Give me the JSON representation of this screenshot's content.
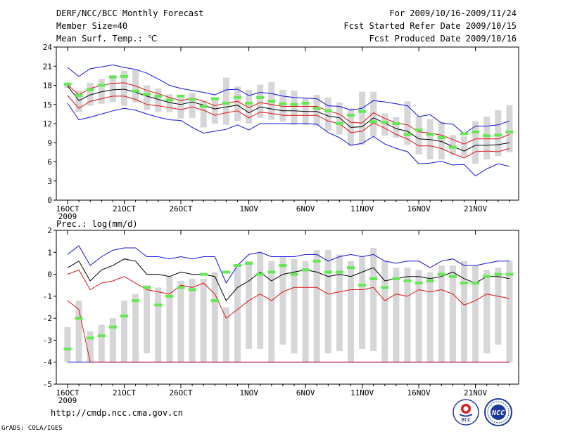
{
  "header": {
    "title": "DERF/NCC/BCC Monthly Forecast",
    "member_size": "Member Size=40",
    "variable": "Mean Surf. Temp.: ℃",
    "period": "For 2009/10/16-2009/11/24",
    "start_date": "Fcst Started Refer Date 2009/10/15",
    "produced_date": "Fcst Produced Date 2009/10/16"
  },
  "footer": {
    "url": "http://cmdp.ncc.cma.gov.cn",
    "credit": "GrADS: COLA/IGES",
    "logo_bcc": "BCC",
    "logo_ncc": "NCC"
  },
  "colors": {
    "box": "#d6d6d8",
    "mean": "#000000",
    "red": "#e01010",
    "blue": "#1010e0",
    "green": "#60ea50",
    "axis": "#000000"
  },
  "chart_data": [
    {
      "type": "box-ensemble",
      "title": "Mean Surf. Temp.: ℃",
      "x_tick_labels": [
        "16OCT",
        "21OCT",
        "26OCT",
        "1NOV",
        "6NOV",
        "11NOV",
        "16NOV",
        "21NOV"
      ],
      "x_tick_day_index": [
        0,
        5,
        10,
        16,
        21,
        26,
        31,
        36
      ],
      "x_year_label": "2009",
      "ylim": [
        0,
        24
      ],
      "y_ticks": [
        0,
        3,
        6,
        9,
        12,
        15,
        18,
        21,
        24
      ],
      "days": 40,
      "mean": [
        17.9,
        15.6,
        16.5,
        17.0,
        17.3,
        17.4,
        16.9,
        16.3,
        15.8,
        15.3,
        15.0,
        15.4,
        14.9,
        14.3,
        14.6,
        14.9,
        13.7,
        14.6,
        14.3,
        14.0,
        14.0,
        13.9,
        13.9,
        13.2,
        12.9,
        11.4,
        11.5,
        12.9,
        12.1,
        11.2,
        10.8,
        9.6,
        9.5,
        9.2,
        8.4,
        7.7,
        8.6,
        8.6,
        8.7,
        9.0
      ],
      "red_upper": [
        18.1,
        16.5,
        17.5,
        18.0,
        18.3,
        18.4,
        17.9,
        17.2,
        16.7,
        16.1,
        15.6,
        16.0,
        15.5,
        14.8,
        15.2,
        15.5,
        14.5,
        15.3,
        15.0,
        14.7,
        14.7,
        14.7,
        14.7,
        14.0,
        13.5,
        12.2,
        12.1,
        13.7,
        12.8,
        12.1,
        11.8,
        10.7,
        10.5,
        10.2,
        9.5,
        8.8,
        9.6,
        9.6,
        9.6,
        10.3
      ],
      "red_lower": [
        16.4,
        14.4,
        15.5,
        15.9,
        16.3,
        16.3,
        15.8,
        15.0,
        14.8,
        14.5,
        14.2,
        14.6,
        14.1,
        13.3,
        13.7,
        14.0,
        12.9,
        13.8,
        13.6,
        13.3,
        13.3,
        13.3,
        13.3,
        12.4,
        12.0,
        10.6,
        10.8,
        12.1,
        11.3,
        10.3,
        9.6,
        8.5,
        8.5,
        8.1,
        7.3,
        6.6,
        7.6,
        7.7,
        7.6,
        8.1
      ],
      "blue_upper": [
        20.8,
        19.4,
        20.6,
        20.9,
        21.2,
        20.8,
        20.5,
        19.9,
        19.0,
        18.0,
        17.5,
        17.2,
        16.9,
        16.5,
        17.3,
        17.4,
        16.4,
        16.9,
        16.7,
        16.3,
        16.1,
        16.0,
        15.9,
        14.8,
        14.7,
        14.1,
        14.4,
        15.6,
        15.4,
        15.1,
        14.8,
        13.1,
        13.4,
        12.1,
        11.9,
        10.4,
        11.6,
        11.6,
        11.8,
        12.4
      ],
      "blue_lower": [
        15.2,
        12.6,
        13.0,
        13.5,
        14.0,
        14.4,
        14.1,
        13.5,
        13.0,
        12.6,
        12.5,
        11.4,
        10.5,
        10.8,
        11.1,
        11.8,
        11.0,
        12.0,
        12.0,
        12.0,
        12.0,
        12.0,
        11.9,
        10.6,
        9.8,
        8.6,
        8.9,
        10.0,
        8.8,
        8.1,
        7.6,
        5.7,
        5.8,
        6.1,
        5.5,
        5.6,
        3.8,
        4.9,
        5.7,
        5.3
      ],
      "box_high": [
        18.4,
        17.2,
        18.4,
        19.0,
        19.6,
        20.3,
        20.5,
        18.0,
        17.5,
        16.6,
        16.0,
        16.8,
        15.6,
        16.0,
        19.2,
        17.8,
        17.3,
        18.1,
        18.5,
        17.3,
        17.2,
        16.0,
        16.5,
        16.1,
        15.3,
        14.4,
        17.0,
        17.0,
        13.6,
        13.0,
        15.5,
        13.1,
        12.7,
        12.3,
        10.2,
        10.0,
        12.4,
        13.1,
        14.1,
        14.9
      ],
      "box_low": [
        17.6,
        13.8,
        14.8,
        15.1,
        15.4,
        14.8,
        15.3,
        14.1,
        13.8,
        13.8,
        12.8,
        12.9,
        11.4,
        12.0,
        11.8,
        12.4,
        12.0,
        12.9,
        12.6,
        12.3,
        11.8,
        11.8,
        11.7,
        10.9,
        10.3,
        8.5,
        8.7,
        10.0,
        10.1,
        9.8,
        8.7,
        7.2,
        6.4,
        6.4,
        7.0,
        6.8,
        5.7,
        6.4,
        6.9,
        7.5
      ],
      "green": [
        18.2,
        16.4,
        17.3,
        18.0,
        19.3,
        19.4,
        17.1,
        16.6,
        16.3,
        15.7,
        16.3,
        15.8,
        14.7,
        15.9,
        15.2,
        16.1,
        15.2,
        16.1,
        15.5,
        15.1,
        15.0,
        15.2,
        14.4,
        14.0,
        12.0,
        13.3,
        13.9,
        12.3,
        12.2,
        12.0,
        10.3,
        11.0,
        10.3,
        9.8,
        8.3,
        10.4,
        10.7,
        10.1,
        10.2,
        10.7
      ]
    },
    {
      "type": "box-ensemble",
      "title": "Prec.: log(mm/d)",
      "x_tick_labels": [
        "16OCT",
        "21OCT",
        "26OCT",
        "1NOV",
        "6NOV",
        "11NOV",
        "16NOV",
        "21NOV"
      ],
      "x_tick_day_index": [
        0,
        5,
        10,
        16,
        21,
        26,
        31,
        36
      ],
      "x_year_label": "2009",
      "ylim": [
        -5,
        2
      ],
      "y_ticks": [
        -5,
        -4,
        -3,
        -2,
        -1,
        0,
        1,
        2
      ],
      "days": 40,
      "mean": [
        0.3,
        0.6,
        -0.3,
        0.2,
        0.4,
        0.7,
        0.6,
        0.0,
        0.0,
        -0.1,
        0.1,
        0.0,
        0.0,
        -0.1,
        -1.2,
        -0.6,
        -0.3,
        0.1,
        -0.3,
        0.0,
        0.1,
        0.2,
        0.1,
        -0.1,
        0.0,
        -0.1,
        0.1,
        0.3,
        -0.3,
        -0.2,
        -0.1,
        -0.1,
        -0.2,
        -0.1,
        0.1,
        -0.2,
        -0.4,
        -0.1,
        -0.1,
        -0.2
      ],
      "red_upper": [
        0.0,
        0.2,
        -0.7,
        -0.4,
        -0.3,
        -0.1,
        -0.4,
        -0.7,
        -0.8,
        -0.9,
        -0.5,
        -0.6,
        -0.4,
        -0.9,
        -2.0,
        -1.6,
        -1.2,
        -0.9,
        -1.2,
        -0.8,
        -0.6,
        -0.6,
        -0.6,
        -0.9,
        -0.8,
        -0.7,
        -0.7,
        -0.6,
        -1.2,
        -0.9,
        -1.0,
        -0.7,
        -0.8,
        -0.7,
        -0.9,
        -1.4,
        -1.2,
        -0.9,
        -1.0,
        -1.1
      ],
      "red_lower": [
        -1.2,
        -1.6,
        -4.0,
        -4.0,
        -4.0,
        -4.0,
        -4.0,
        -4.0,
        -4.0,
        -4.0,
        -4.0,
        -4.0,
        -4.0,
        -4.0,
        -4.0,
        -4.0,
        -4.0,
        -4.0,
        -4.0,
        -4.0,
        -4.0,
        -4.0,
        -4.0,
        -4.0,
        -4.0,
        -4.0,
        -4.0,
        -4.0,
        -4.0,
        -4.0,
        -4.0,
        -4.0,
        -4.0,
        -4.0,
        -4.0,
        -4.0,
        -4.0,
        -4.0,
        -4.0,
        -4.0
      ],
      "blue_upper": [
        0.9,
        1.3,
        0.4,
        0.8,
        1.1,
        1.2,
        1.2,
        0.8,
        0.8,
        0.7,
        0.8,
        0.7,
        0.8,
        0.8,
        -0.4,
        0.4,
        0.9,
        1.0,
        0.8,
        0.8,
        0.8,
        0.9,
        0.9,
        0.6,
        0.8,
        0.9,
        0.8,
        0.9,
        0.6,
        0.5,
        0.6,
        0.6,
        0.3,
        0.6,
        0.7,
        0.4,
        0.4,
        0.5,
        0.6,
        0.6
      ],
      "blue_lower": [
        -4.0,
        -4.0,
        -4.0,
        -4.0,
        -4.0,
        -4.0,
        -4.0,
        -4.0,
        -4.0,
        -4.0,
        -4.0,
        -4.0,
        -4.0,
        -4.0,
        -4.0,
        -4.0,
        -4.0,
        -4.0,
        -4.0,
        -4.0,
        -4.0,
        -4.0,
        -4.0,
        -4.0,
        -4.0,
        -4.0,
        -4.0,
        -4.0,
        -4.0,
        -4.0,
        -4.0,
        -4.0,
        -4.0,
        -4.0,
        -4.0,
        -4.0,
        -4.0,
        -4.0,
        -4.0,
        -4.0
      ],
      "box_high": [
        -2.4,
        -1.2,
        -2.6,
        -2.3,
        -2.0,
        -1.2,
        -0.9,
        -0.5,
        -0.6,
        -0.1,
        -0.3,
        -0.2,
        -0.2,
        0.1,
        -1.5,
        0.3,
        0.6,
        1.0,
        0.6,
        0.8,
        0.7,
        0.6,
        1.1,
        1.1,
        0.9,
        0.6,
        0.8,
        1.2,
        0.6,
        0.3,
        0.3,
        0.2,
        0.1,
        0.4,
        0.4,
        0.6,
        0.4,
        0.2,
        0.3,
        0.6
      ],
      "box_low": [
        -4.0,
        -4.0,
        -4.0,
        -4.0,
        -4.0,
        -4.0,
        -4.0,
        -3.6,
        -4.0,
        -4.0,
        -4.0,
        -4.0,
        -4.0,
        -4.0,
        -4.0,
        -4.0,
        -3.4,
        -3.4,
        -4.0,
        -3.2,
        -3.6,
        -4.0,
        -4.0,
        -3.6,
        -3.5,
        -4.0,
        -3.4,
        -3.5,
        -4.0,
        -4.0,
        -4.0,
        -4.0,
        -4.0,
        -4.0,
        -4.0,
        -4.0,
        -4.0,
        -3.6,
        -3.2,
        -4.0
      ],
      "green": [
        -3.4,
        -2.0,
        -2.9,
        -2.8,
        -2.4,
        -1.9,
        -1.2,
        -0.6,
        -1.4,
        -1.0,
        -0.6,
        -0.7,
        0.0,
        -1.2,
        0.1,
        0.4,
        0.5,
        0.0,
        0.1,
        0.4,
        0.0,
        0.2,
        0.6,
        0.1,
        0.1,
        0.3,
        -0.5,
        -0.2,
        -0.6,
        -0.2,
        -0.3,
        -0.4,
        -0.3,
        0.0,
        -0.1,
        -0.4,
        -0.4,
        -0.1,
        0.0,
        0.0
      ]
    }
  ]
}
